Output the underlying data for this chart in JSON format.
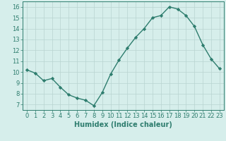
{
  "xlabel": "Humidex (Indice chaleur)",
  "x": [
    0,
    1,
    2,
    3,
    4,
    5,
    6,
    7,
    8,
    9,
    10,
    11,
    12,
    13,
    14,
    15,
    16,
    17,
    18,
    19,
    20,
    21,
    22,
    23
  ],
  "y": [
    10.2,
    9.9,
    9.2,
    9.4,
    8.6,
    7.9,
    7.6,
    7.4,
    6.9,
    8.1,
    9.8,
    11.1,
    12.2,
    13.2,
    14.0,
    15.0,
    15.2,
    16.0,
    15.8,
    15.2,
    14.2,
    12.5,
    11.2,
    10.3
  ],
  "line_color": "#2e7d6e",
  "marker": "D",
  "marker_size": 2.2,
  "line_width": 1.0,
  "bg_color": "#d6eeeb",
  "grid_color": "#b8d4d0",
  "tick_color": "#2e7d6e",
  "label_color": "#2e7d6e",
  "ylim": [
    6.5,
    16.5
  ],
  "yticks": [
    7,
    8,
    9,
    10,
    11,
    12,
    13,
    14,
    15,
    16
  ],
  "xlim": [
    -0.5,
    23.5
  ],
  "xticks": [
    0,
    1,
    2,
    3,
    4,
    5,
    6,
    7,
    8,
    9,
    10,
    11,
    12,
    13,
    14,
    15,
    16,
    17,
    18,
    19,
    20,
    21,
    22,
    23
  ],
  "xlabel_fontsize": 7.0,
  "tick_fontsize": 6.0
}
